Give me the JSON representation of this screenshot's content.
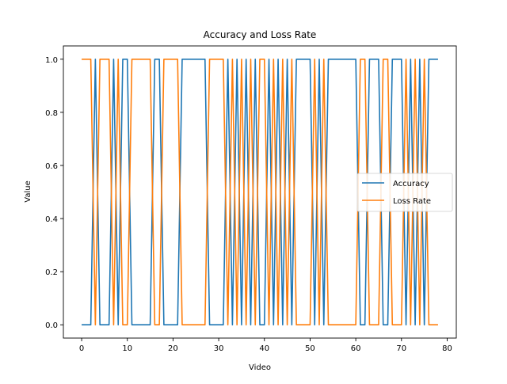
{
  "chart_data": {
    "type": "line",
    "title": "Accuracy and Loss Rate",
    "xlabel": "Video",
    "ylabel": "Value",
    "xlim": [
      -4,
      82
    ],
    "ylim": [
      -0.05,
      1.05
    ],
    "xticks": [
      0,
      10,
      20,
      30,
      40,
      50,
      60,
      70,
      80
    ],
    "xtick_labels": [
      "0",
      "10",
      "20",
      "30",
      "40",
      "50",
      "60",
      "70",
      "80"
    ],
    "yticks": [
      0.0,
      0.2,
      0.4,
      0.6,
      0.8,
      1.0
    ],
    "ytick_labels": [
      "0.0",
      "0.2",
      "0.4",
      "0.6",
      "0.8",
      "1.0"
    ],
    "grid": false,
    "legend_position": "center-right",
    "x": [
      0,
      1,
      2,
      3,
      4,
      5,
      6,
      7,
      8,
      9,
      10,
      11,
      12,
      13,
      14,
      15,
      16,
      17,
      18,
      19,
      20,
      21,
      22,
      23,
      24,
      25,
      26,
      27,
      28,
      29,
      30,
      31,
      32,
      33,
      34,
      35,
      36,
      37,
      38,
      39,
      40,
      41,
      42,
      43,
      44,
      45,
      46,
      47,
      48,
      49,
      50,
      51,
      52,
      53,
      54,
      55,
      56,
      57,
      58,
      59,
      60,
      61,
      62,
      63,
      64,
      65,
      66,
      67,
      68,
      69,
      70,
      71,
      72,
      73,
      74,
      75,
      76,
      77,
      78
    ],
    "series": [
      {
        "name": "Accuracy",
        "color": "#1f77b4",
        "values": [
          0,
          0,
          0,
          1,
          0,
          0,
          0,
          1,
          0,
          1,
          1,
          0,
          0,
          0,
          0,
          0,
          1,
          1,
          0,
          0,
          0,
          0,
          1,
          1,
          1,
          1,
          1,
          1,
          0,
          0,
          0,
          0,
          1,
          0,
          1,
          0,
          1,
          0,
          1,
          0,
          0,
          1,
          0,
          1,
          0,
          1,
          0,
          1,
          1,
          1,
          1,
          0,
          1,
          0,
          1,
          1,
          1,
          1,
          1,
          1,
          1,
          0,
          0,
          1,
          1,
          1,
          0,
          0,
          1,
          1,
          1,
          0,
          1,
          0,
          1,
          0,
          1,
          1,
          1
        ]
      },
      {
        "name": "Loss Rate",
        "color": "#ff7f0e",
        "values": [
          1,
          1,
          1,
          0,
          1,
          1,
          1,
          0,
          1,
          0,
          0,
          1,
          1,
          1,
          1,
          1,
          0,
          0,
          1,
          1,
          1,
          1,
          0,
          0,
          0,
          0,
          0,
          0,
          1,
          1,
          1,
          1,
          0,
          1,
          0,
          1,
          0,
          1,
          0,
          1,
          1,
          0,
          1,
          0,
          1,
          0,
          1,
          0,
          0,
          0,
          0,
          1,
          0,
          1,
          0,
          0,
          0,
          0,
          0,
          0,
          0,
          1,
          1,
          0,
          0,
          0,
          1,
          1,
          0,
          0,
          0,
          1,
          0,
          1,
          0,
          1,
          0,
          0,
          0
        ]
      }
    ]
  }
}
